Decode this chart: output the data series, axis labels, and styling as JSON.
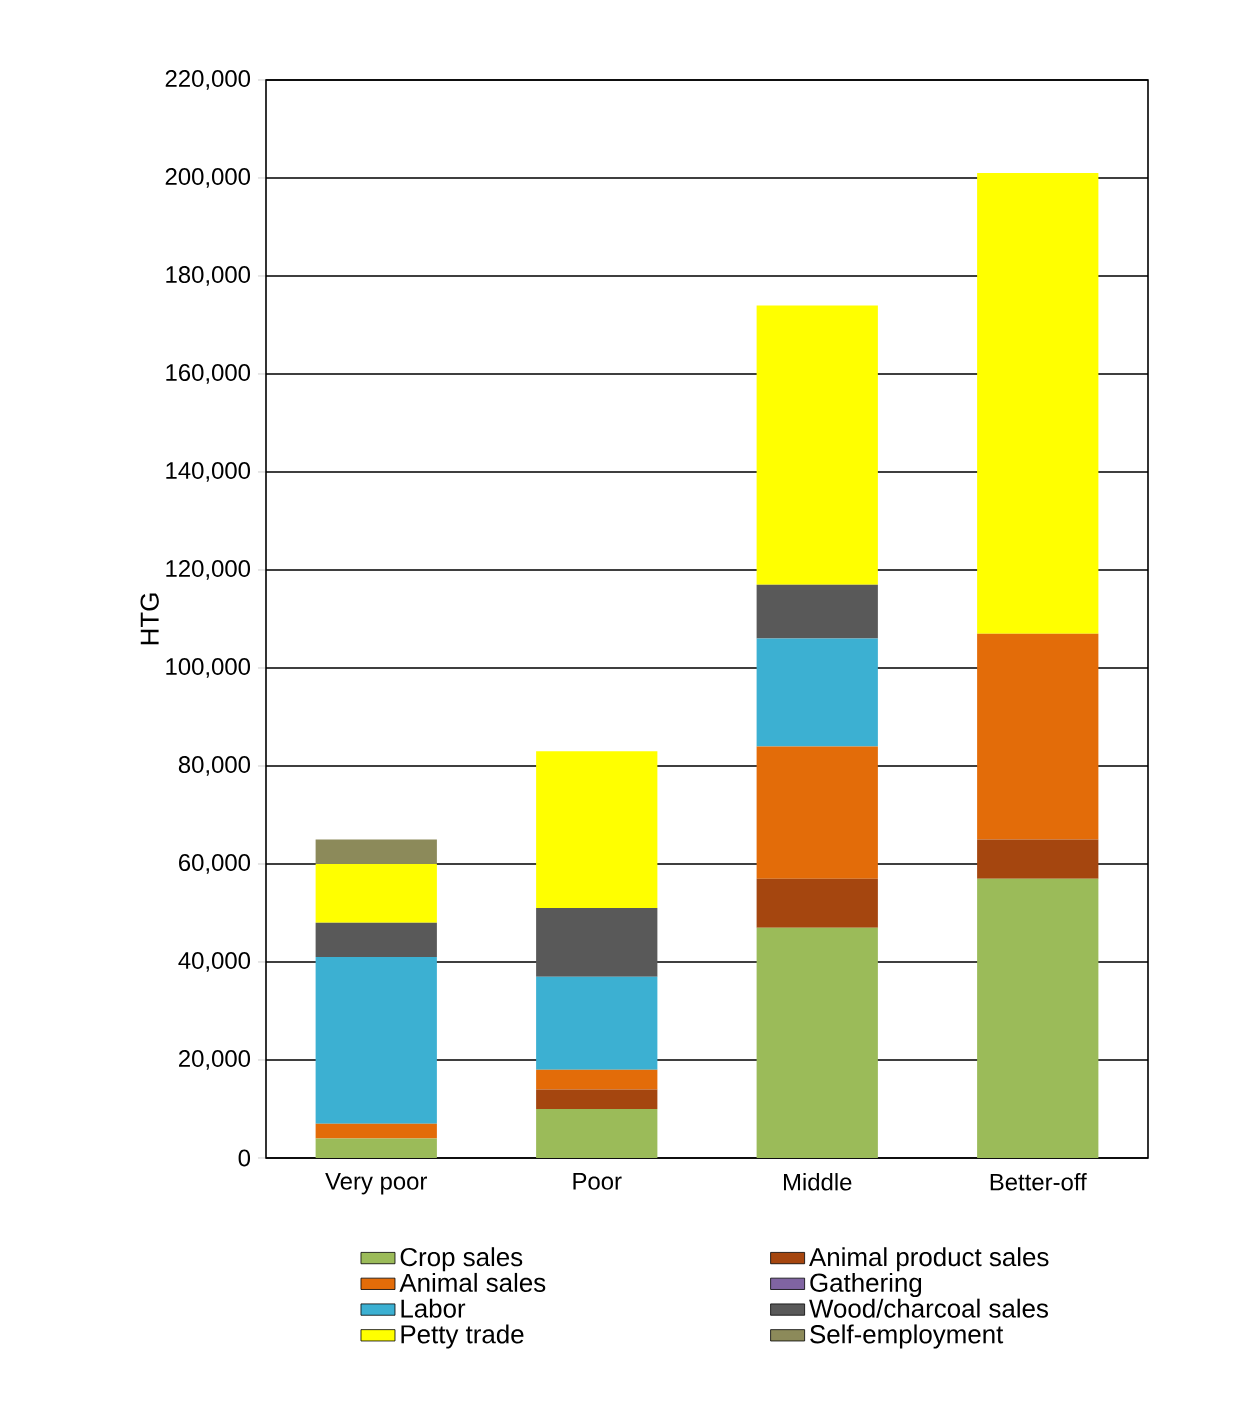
{
  "chart_data": {
    "type": "bar",
    "stacked": true,
    "ylabel": "HTG",
    "categories": [
      "Very poor",
      "Poor",
      "Middle",
      "Better-off"
    ],
    "series": [
      {
        "name": "Crop sales",
        "color": "#9bbb59",
        "values": [
          4000,
          10000,
          47000,
          57000
        ]
      },
      {
        "name": "Animal product sales",
        "color": "#a5460f",
        "values": [
          0,
          4000,
          10000,
          8000
        ]
      },
      {
        "name": "Animal sales",
        "color": "#e36c09",
        "values": [
          3000,
          4000,
          27000,
          42000
        ]
      },
      {
        "name": "Gathering",
        "color": "#8064a2",
        "values": [
          0,
          0,
          0,
          0
        ]
      },
      {
        "name": "Labor",
        "color": "#3cb0d2",
        "values": [
          34000,
          19000,
          22000,
          0
        ]
      },
      {
        "name": "Wood/charcoal sales",
        "color": "#595959",
        "values": [
          7000,
          14000,
          11000,
          0
        ]
      },
      {
        "name": "Petty trade",
        "color": "#ffff00",
        "values": [
          12000,
          32000,
          57000,
          94000
        ]
      },
      {
        "name": "Self-employment",
        "color": "#8c8a5a",
        "values": [
          5000,
          0,
          0,
          0
        ]
      }
    ],
    "ylim": [
      0,
      220000
    ],
    "yticks": [
      {
        "value": 0,
        "label": "0"
      },
      {
        "value": 20000,
        "label": "20,000"
      },
      {
        "value": 40000,
        "label": "40,000"
      },
      {
        "value": 60000,
        "label": "60,000"
      },
      {
        "value": 80000,
        "label": "80,000"
      },
      {
        "value": 100000,
        "label": "100,000"
      },
      {
        "value": 120000,
        "label": "120,000"
      },
      {
        "value": 140000,
        "label": "140,000"
      },
      {
        "value": 160000,
        "label": "160,000"
      },
      {
        "value": 180000,
        "label": "180,000"
      },
      {
        "value": 200000,
        "label": "200,000"
      },
      {
        "value": 220000,
        "label": "220,000"
      }
    ],
    "grid": "y",
    "legend": "bottom"
  }
}
